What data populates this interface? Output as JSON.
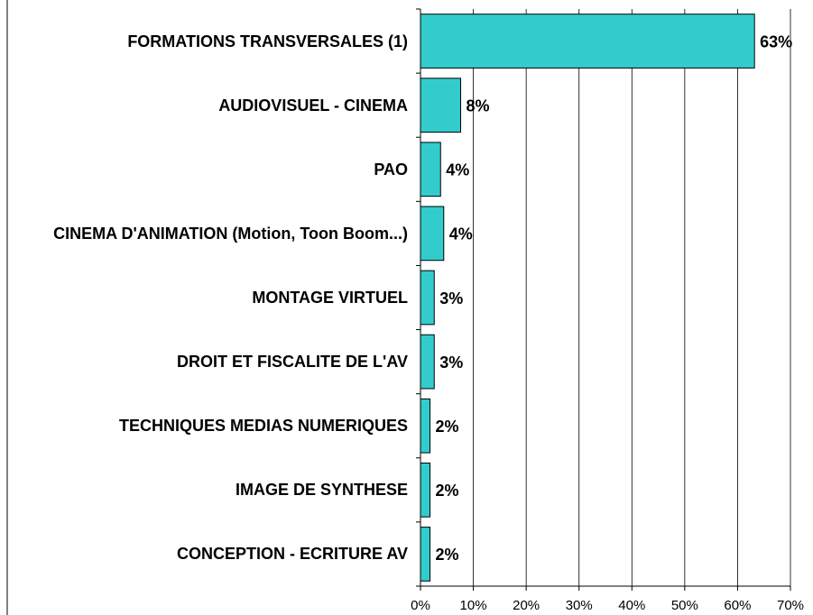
{
  "chart_data": {
    "type": "barh",
    "categories": [
      "FORMATIONS TRANSVERSALES (1)",
      "AUDIOVISUEL - CINEMA",
      "PAO",
      "CINEMA D'ANIMATION (Motion, Toon Boom...)",
      "MONTAGE VIRTUEL",
      "DROIT ET FISCALITE DE L'AV",
      "TECHNIQUES MEDIAS NUMERIQUES",
      "IMAGE DE SYNTHESE",
      "CONCEPTION - ECRITURE AV"
    ],
    "values": [
      63.2,
      7.6,
      3.8,
      4.4,
      2.6,
      2.6,
      1.8,
      1.8,
      1.8
    ],
    "value_labels": [
      "63%",
      "8%",
      "4%",
      "4%",
      "3%",
      "3%",
      "2%",
      "2%",
      "2%"
    ],
    "color": "#33cccc",
    "xlim": [
      0,
      70
    ],
    "xticks": [
      {
        "value": 0,
        "label": "0%"
      },
      {
        "value": 10,
        "label": "10%"
      },
      {
        "value": 20,
        "label": "20%"
      },
      {
        "value": 30,
        "label": "30%"
      },
      {
        "value": 40,
        "label": "40%"
      },
      {
        "value": 50,
        "label": "50%"
      },
      {
        "value": 60,
        "label": "60%"
      },
      {
        "value": 70,
        "label": "70%"
      }
    ],
    "grid": true
  }
}
